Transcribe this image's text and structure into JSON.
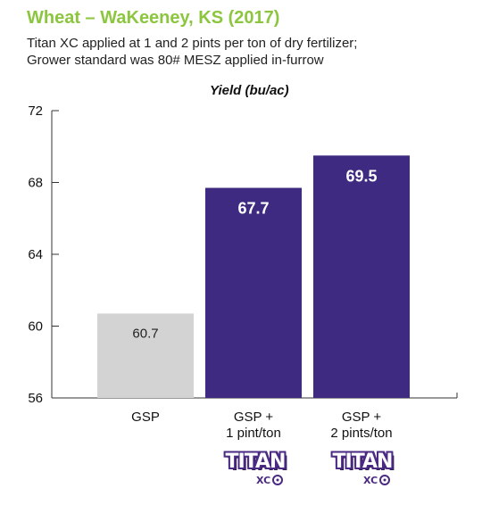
{
  "title": "Wheat – WaKeeney, KS (2017)",
  "subtitle_lines": [
    "Titan XC applied at 1 and 2 pints per ton of dry fertilizer;",
    "Grower standard was 80# MESZ applied in-furrow"
  ],
  "colors": {
    "title": "#8cc63f",
    "gsp_bar": "#d3d3d3",
    "titan_bar": "#3f2a82",
    "logo": "#4a2a82"
  },
  "chart_data": {
    "type": "bar",
    "ylabel": "Yield (bu/ac)",
    "ylim": [
      56,
      72
    ],
    "yticks": [
      56,
      60,
      64,
      68,
      72
    ],
    "categories": [
      [
        "GSP"
      ],
      [
        "GSP +",
        "1 pint/ton"
      ],
      [
        "GSP +",
        "2 pints/ton"
      ]
    ],
    "values": [
      60.7,
      67.7,
      69.5
    ],
    "value_labels": [
      "60.7",
      "67.7",
      "69.5"
    ],
    "grid": false
  },
  "logos": [
    {
      "word": "TITAN",
      "sub": "XC",
      "icon": "titan-xc-logo"
    },
    {
      "word": "TITAN",
      "sub": "XC",
      "icon": "titan-xc-logo"
    }
  ]
}
